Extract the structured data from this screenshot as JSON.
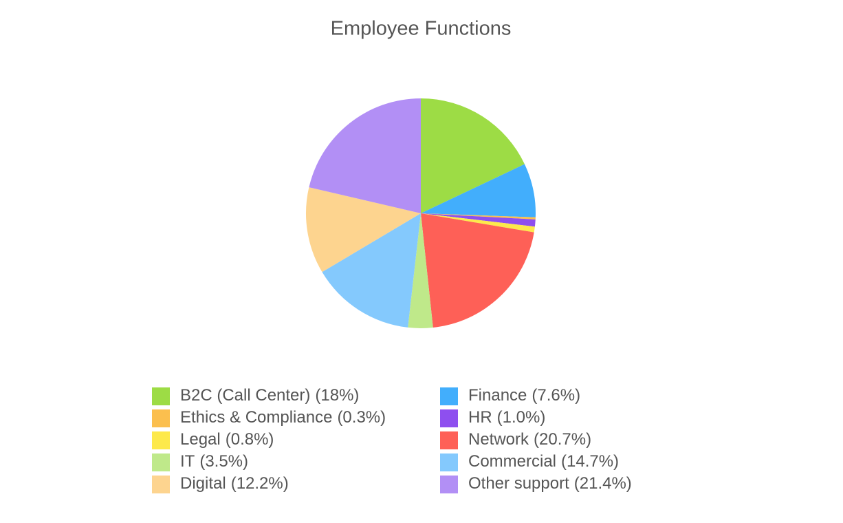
{
  "chart_data": {
    "type": "pie",
    "title": "Employee Functions",
    "categories": [
      "B2C (Call Center)",
      "Finance",
      "Ethics & Compliance",
      "HR",
      "Legal",
      "Network",
      "IT",
      "Commercial",
      "Digital",
      "Other support"
    ],
    "values": [
      18,
      7.6,
      0.3,
      1.0,
      0.8,
      20.7,
      3.5,
      14.7,
      12.2,
      21.4
    ],
    "value_labels": [
      "(18%)",
      "(7.6%)",
      "(0.3%)",
      "(1.0%)",
      "(0.8%)",
      "(20.7%)",
      "(3.5%)",
      "(14.7%)",
      "(12.2%)",
      "(21.4%)"
    ],
    "colors": [
      "#9ddc45",
      "#42aefc",
      "#fbbf4e",
      "#8e4fef",
      "#fde94b",
      "#fe6057",
      "#bfe98a",
      "#84c9fd",
      "#fdd48f",
      "#b28ff5"
    ],
    "legend": "bottom"
  }
}
